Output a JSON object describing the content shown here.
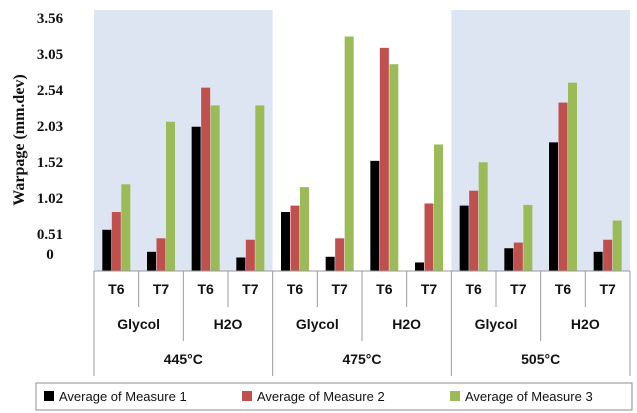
{
  "chart_data": {
    "type": "bar",
    "ylabel": "Warpage (mm.dev)",
    "y_ticks": [
      "3.56",
      "3.05",
      "2.54",
      "2.03",
      "1.52",
      "1.02",
      "0.51",
      "0"
    ],
    "ylim": [
      0,
      3.56
    ],
    "grid": false,
    "legend_position": "bottom",
    "temperatures": [
      "445°C",
      "475°C",
      "505°C"
    ],
    "media": [
      "Glycol",
      "H2O"
    ],
    "tempers": [
      "T6",
      "T7"
    ],
    "categories": [
      "445°C / Glycol / T6",
      "445°C / Glycol / T7",
      "445°C / H2O / T6",
      "445°C / H2O / T7",
      "475°C / Glycol / T6",
      "475°C / Glycol / T7",
      "475°C / H2O / T6",
      "475°C / H2O / T7",
      "505°C / Glycol / T6",
      "505°C / Glycol / T7",
      "505°C / H2O / T6",
      "505°C / H2O / T7"
    ],
    "series": [
      {
        "name": "Average of Measure 1",
        "color": "#000000",
        "values": [
          0.58,
          0.27,
          2.03,
          0.19,
          0.83,
          0.2,
          1.55,
          0.12,
          0.92,
          0.32,
          1.81,
          0.27
        ]
      },
      {
        "name": "Average of Measure 2",
        "color": "#c0504d",
        "values": [
          0.83,
          0.46,
          2.58,
          0.44,
          0.92,
          0.46,
          3.14,
          0.95,
          1.13,
          0.4,
          2.37,
          0.44
        ]
      },
      {
        "name": "Average of Measure 3",
        "color": "#9bbb59",
        "values": [
          1.22,
          2.1,
          2.33,
          2.33,
          1.18,
          3.3,
          2.91,
          1.78,
          1.53,
          0.93,
          2.65,
          0.71
        ]
      }
    ]
  }
}
